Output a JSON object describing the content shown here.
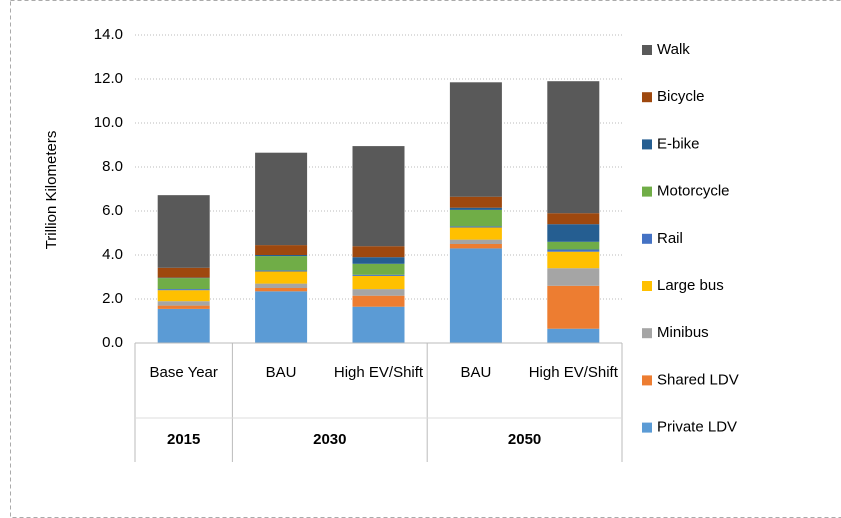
{
  "chart_data": {
    "type": "stacked_bar",
    "y_label": "Trillion Kilometers",
    "categories": [
      "Base Year",
      "BAU",
      "High EV/Shift",
      "BAU",
      "High EV/Shift"
    ],
    "groups": [
      "2015",
      "2030",
      "2050"
    ],
    "ylim": [
      0,
      14
    ],
    "yticks": [
      {
        "value": 0,
        "label": "0.0"
      },
      {
        "value": 2,
        "label": "2.0"
      },
      {
        "value": 4,
        "label": "4.0"
      },
      {
        "value": 6,
        "label": "6.0"
      },
      {
        "value": 8,
        "label": "8.0"
      },
      {
        "value": 10,
        "label": "10.0"
      },
      {
        "value": 12,
        "label": "12.0"
      },
      {
        "value": 14,
        "label": "14.0"
      }
    ],
    "grid": true,
    "legend": "right",
    "series": [
      {
        "name": "Private LDV",
        "color": "#5b9bd5",
        "values": [
          1.55,
          2.35,
          1.65,
          4.3,
          0.65
        ]
      },
      {
        "name": "Shared LDV",
        "color": "#ed7d31",
        "values": [
          0.15,
          0.15,
          0.5,
          0.2,
          1.95
        ]
      },
      {
        "name": "Minibus",
        "color": "#a5a5a5",
        "values": [
          0.2,
          0.2,
          0.3,
          0.2,
          0.8
        ]
      },
      {
        "name": "Large bus",
        "color": "#ffc000",
        "values": [
          0.5,
          0.55,
          0.6,
          0.55,
          0.75
        ]
      },
      {
        "name": "Rail",
        "color": "#4472c4",
        "values": [
          0.05,
          0.05,
          0.05,
          0.05,
          0.1
        ]
      },
      {
        "name": "Motorcycle",
        "color": "#70ad47",
        "values": [
          0.5,
          0.65,
          0.5,
          0.75,
          0.35
        ]
      },
      {
        "name": "E-bike",
        "color": "#255e91",
        "values": [
          0.02,
          0.05,
          0.3,
          0.1,
          0.8
        ]
      },
      {
        "name": "Bicycle",
        "color": "#9e480e",
        "values": [
          0.45,
          0.45,
          0.5,
          0.5,
          0.5
        ]
      },
      {
        "name": "Walk",
        "color": "#595959",
        "values": [
          3.3,
          4.2,
          4.55,
          5.2,
          6.0
        ]
      }
    ]
  }
}
